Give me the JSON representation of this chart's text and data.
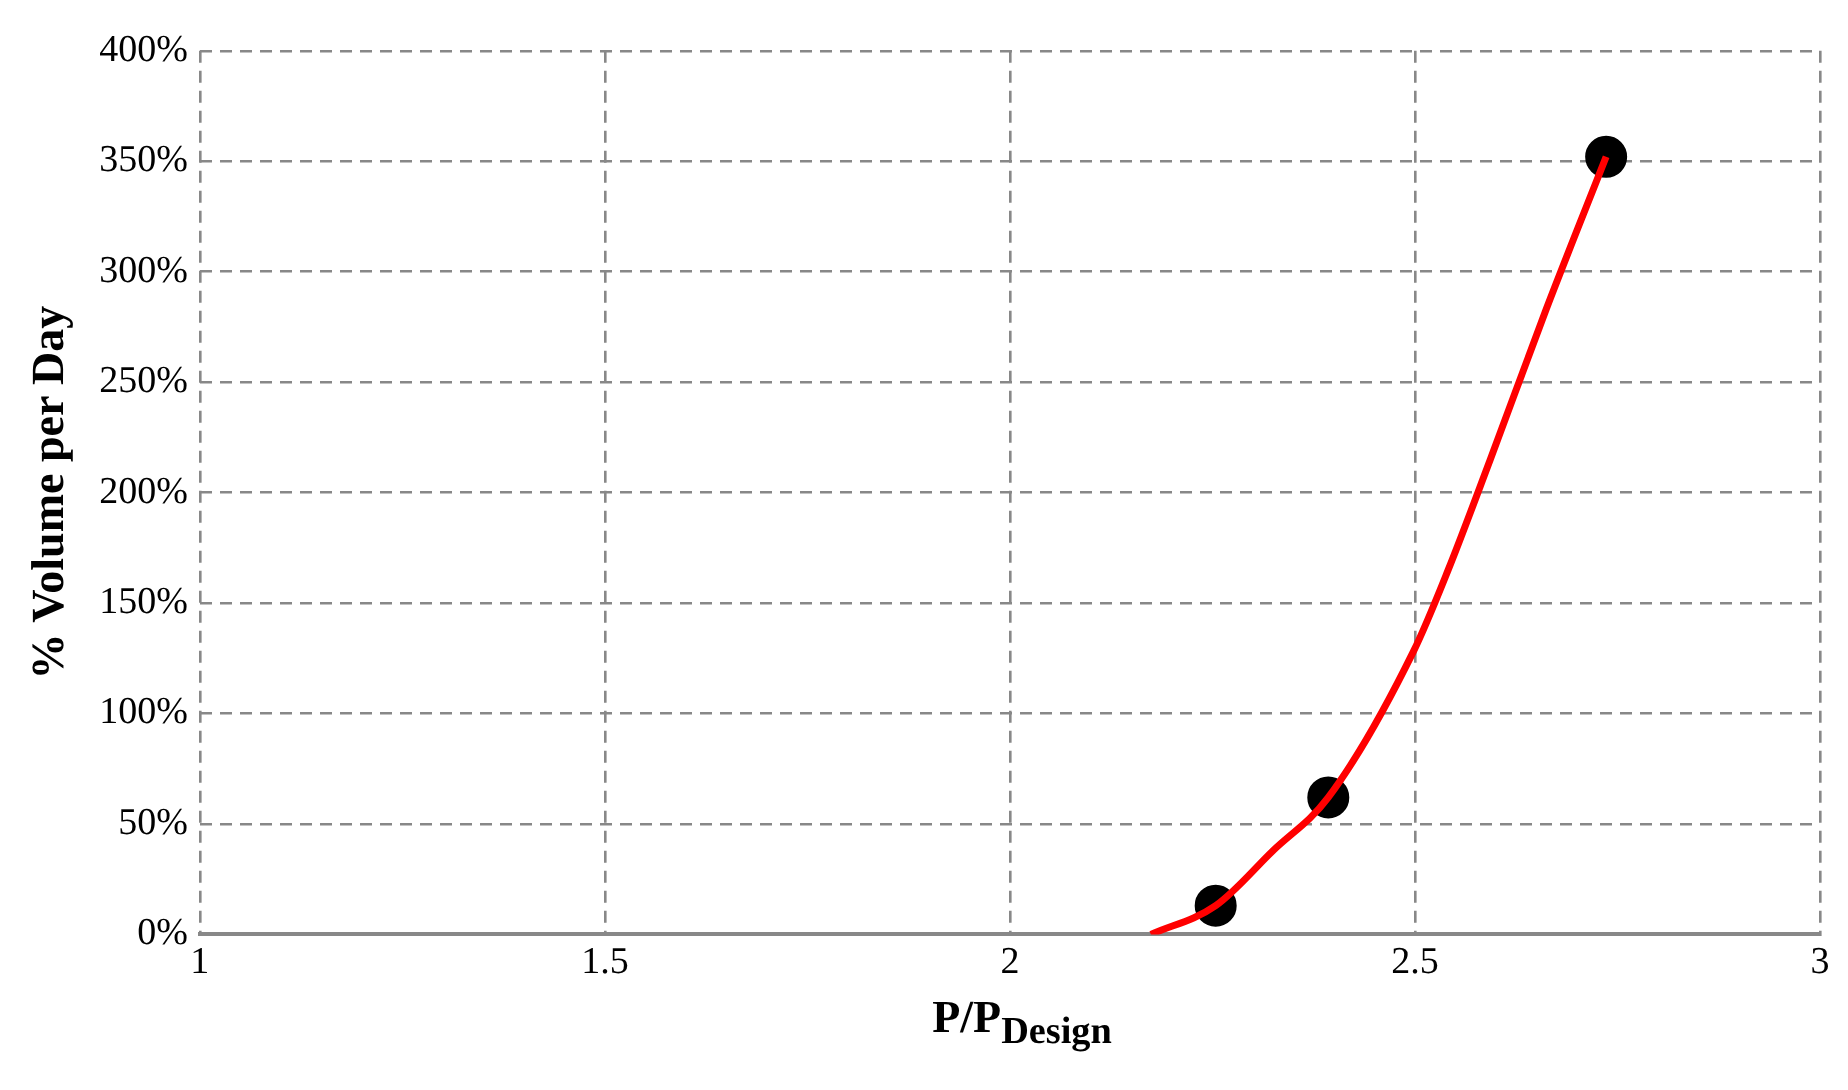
{
  "chart_data": {
    "type": "scatter",
    "xlabel": "P/P$_{Design}$",
    "ylabel": "% Volume per Day",
    "xlim": [
      1,
      3
    ],
    "xticks": [
      1,
      1.5,
      2,
      2.5,
      3
    ],
    "ylim": [
      0,
      400
    ],
    "yticks": [
      {
        "value": 0,
        "label": "0%"
      },
      {
        "value": 50,
        "label": "50%"
      },
      {
        "value": 100,
        "label": "100%"
      },
      {
        "value": 150,
        "label": "150%"
      },
      {
        "value": 200,
        "label": "200%"
      },
      {
        "value": 250,
        "label": "250%"
      },
      {
        "value": 300,
        "label": "300%"
      },
      {
        "value": 350,
        "label": "350%"
      },
      {
        "value": 400,
        "label": "400%"
      }
    ],
    "grid": true,
    "legend": false,
    "series": [
      {
        "type": "line",
        "marker": "none",
        "color": "#ff0000",
        "x": [
          2.174,
          2.254,
          2.325,
          2.393,
          2.498,
          2.541,
          2.593,
          2.662,
          2.736
        ],
        "values": [
          0,
          13,
          38,
          62,
          128,
          165,
          215,
          283,
          352
        ]
      },
      {
        "marker": "circle",
        "color": "#000000",
        "x": [
          2.254,
          2.393,
          2.736
        ],
        "values": [
          13,
          62,
          352
        ]
      }
    ]
  }
}
